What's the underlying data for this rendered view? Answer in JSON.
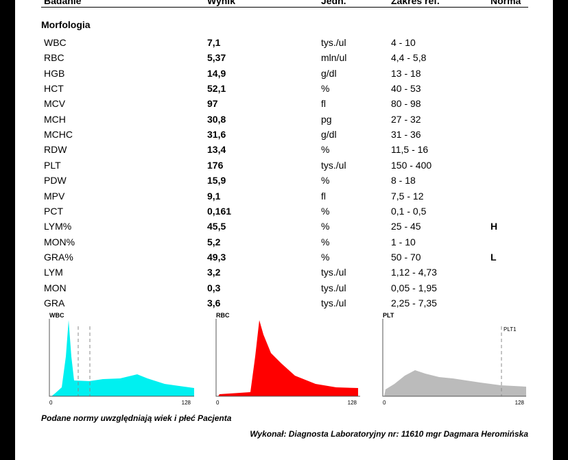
{
  "header": {
    "columns": [
      "Badanie",
      "Wynik",
      "Jedn.",
      "Zakres ref.",
      "Norma"
    ]
  },
  "section": "Morfologia",
  "rows": [
    {
      "name": "WBC",
      "result": "7,1",
      "unit": "tys./ul",
      "range": "4 - 10"
    },
    {
      "name": "RBC",
      "result": "5,37",
      "unit": "mln/ul",
      "range": "4,4 - 5,8"
    },
    {
      "name": "HGB",
      "result": "14,9",
      "unit": "g/dl",
      "range": "13 - 18"
    },
    {
      "name": "HCT",
      "result": "52,1",
      "unit": "%",
      "range": "40 - 53"
    },
    {
      "name": "MCV",
      "result": "97",
      "unit": "fl",
      "range": "80 - 98"
    },
    {
      "name": "MCH",
      "result": "30,8",
      "unit": "pg",
      "range": "27 - 32"
    },
    {
      "name": "MCHC",
      "result": "31,6",
      "unit": "g/dl",
      "range": "31 - 36"
    },
    {
      "name": "RDW",
      "result": "13,4",
      "unit": "%",
      "range": "11,5 - 16"
    },
    {
      "name": "PLT",
      "result": "176",
      "unit": "tys./ul",
      "range": "150 - 400"
    },
    {
      "name": "PDW",
      "result": "15,9",
      "unit": "%",
      "range": "8 - 18"
    },
    {
      "name": "MPV",
      "result": "9,1",
      "unit": "fl",
      "range": "7,5 - 12"
    },
    {
      "name": "PCT",
      "result": "0,161",
      "unit": "%",
      "range": "0,1 - 0,5"
    },
    {
      "name": "LYM%",
      "result": "45,5",
      "unit": "%",
      "range": "25 - 45",
      "flag": "H"
    },
    {
      "name": "MON%",
      "result": "5,2",
      "unit": "%",
      "range": "1 - 10"
    },
    {
      "name": "GRA%",
      "result": "49,3",
      "unit": "%",
      "range": "50 - 70",
      "flag": "L"
    },
    {
      "name": "LYM",
      "result": "3,2",
      "unit": "tys./ul",
      "range": "1,12 - 4,73"
    },
    {
      "name": "MON",
      "result": "0,3",
      "unit": "tys./ul",
      "range": "0,05 - 1,95"
    },
    {
      "name": "GRA",
      "result": "3,6",
      "unit": "tys./ul",
      "range": "2,25 - 7,35"
    }
  ],
  "histograms": [
    {
      "label": "WBC",
      "min": "0",
      "max": "128"
    },
    {
      "label": "RBC",
      "min": "0",
      "max": "128"
    },
    {
      "label": "PLT",
      "min": "0",
      "max": "128",
      "marker": "PLT1"
    }
  ],
  "footer": {
    "note": "Podane normy uwzględniają wiek i płeć Pacjenta",
    "signature": "Wykonał: Diagnosta Laboratoryjny nr: 11610 mgr Dagmara Heromińska"
  }
}
